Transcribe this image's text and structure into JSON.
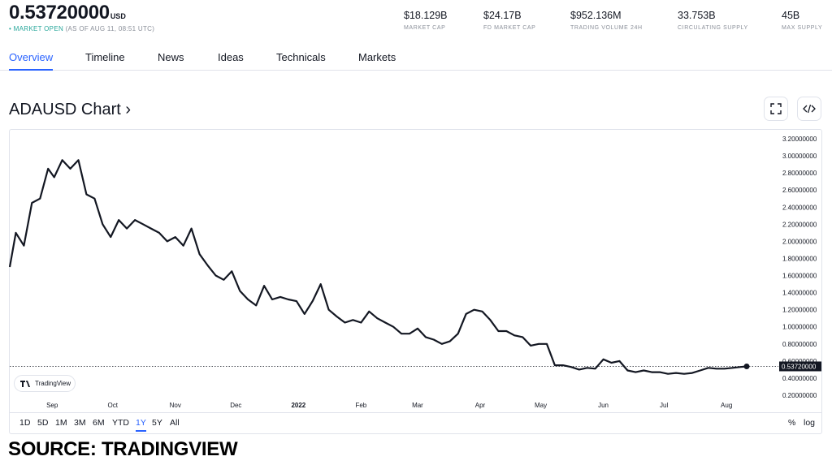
{
  "header": {
    "price": "0.53720000",
    "price_unit": "USD",
    "status_dot": "•",
    "status_open": "MARKET OPEN",
    "status_asof": "(AS OF AUG 11, 08:51 UTC)",
    "stats": [
      {
        "value": "$18.129B",
        "label": "MARKET CAP"
      },
      {
        "value": "$24.17B",
        "label": "FD MARKET CAP"
      },
      {
        "value": "$952.136M",
        "label": "TRADING VOLUME 24H"
      },
      {
        "value": "33.753B",
        "label": "CIRCULATING SUPPLY"
      },
      {
        "value": "45B",
        "label": "MAX SUPPLY"
      }
    ]
  },
  "tabs": [
    {
      "label": "Overview",
      "active": true
    },
    {
      "label": "Timeline"
    },
    {
      "label": "News"
    },
    {
      "label": "Ideas"
    },
    {
      "label": "Technicals"
    },
    {
      "label": "Markets"
    }
  ],
  "chart_title": "ADAUSD Chart ›",
  "icons": {
    "fullscreen": "fullscreen-icon",
    "embed": "embed-code-icon",
    "tradingview": "tradingview-logo"
  },
  "tradingview_label": "TradingView",
  "ranges": [
    {
      "label": "1D"
    },
    {
      "label": "5D"
    },
    {
      "label": "1M"
    },
    {
      "label": "3M"
    },
    {
      "label": "6M"
    },
    {
      "label": "YTD"
    },
    {
      "label": "1Y",
      "active": true
    },
    {
      "label": "5Y"
    },
    {
      "label": "All"
    }
  ],
  "scale_options": [
    "%",
    "log"
  ],
  "source_caption": "SOURCE: TRADINGVIEW",
  "colors": {
    "accent": "#2962ff",
    "line": "#131722",
    "market_open": "#26a69a"
  },
  "chart_data": {
    "type": "line",
    "title": "",
    "xlabel": "",
    "ylabel": "",
    "x_ticks": [
      "Sep",
      "Oct",
      "Nov",
      "Dec",
      "2022",
      "Feb",
      "Mar",
      "Apr",
      "May",
      "Jun",
      "Jul",
      "Aug"
    ],
    "y_ticks": [
      "3.20000000",
      "3.00000000",
      "2.80000000",
      "2.60000000",
      "2.40000000",
      "2.20000000",
      "2.00000000",
      "1.80000000",
      "1.60000000",
      "1.40000000",
      "1.20000000",
      "1.00000000",
      "0.80000000",
      "0.60000000",
      "0.40000000",
      "0.20000000"
    ],
    "ylim": [
      0.2,
      3.2
    ],
    "last_price_label": "0.53720000",
    "last_price": 0.5372,
    "grid": false,
    "series": [
      {
        "x": [
          "2021-08-11",
          "2021-08-14",
          "2021-08-18",
          "2021-08-22",
          "2021-08-26",
          "2021-08-30",
          "2021-09-02",
          "2021-09-06",
          "2021-09-10",
          "2021-09-14",
          "2021-09-18",
          "2021-09-22",
          "2021-09-26",
          "2021-09-30",
          "2021-10-04",
          "2021-10-08",
          "2021-10-12",
          "2021-10-16",
          "2021-10-20",
          "2021-10-24",
          "2021-10-28",
          "2021-11-01",
          "2021-11-05",
          "2021-11-09",
          "2021-11-13",
          "2021-11-17",
          "2021-11-21",
          "2021-11-25",
          "2021-11-29",
          "2021-12-03",
          "2021-12-07",
          "2021-12-11",
          "2021-12-15",
          "2021-12-19",
          "2021-12-23",
          "2021-12-27",
          "2021-12-31",
          "2022-01-04",
          "2022-01-08",
          "2022-01-12",
          "2022-01-16",
          "2022-01-20",
          "2022-01-24",
          "2022-01-28",
          "2022-02-01",
          "2022-02-05",
          "2022-02-09",
          "2022-02-13",
          "2022-02-17",
          "2022-02-21",
          "2022-02-25",
          "2022-03-01",
          "2022-03-05",
          "2022-03-09",
          "2022-03-13",
          "2022-03-17",
          "2022-03-21",
          "2022-03-25",
          "2022-03-29",
          "2022-04-02",
          "2022-04-06",
          "2022-04-10",
          "2022-04-14",
          "2022-04-18",
          "2022-04-22",
          "2022-04-26",
          "2022-04-30",
          "2022-05-04",
          "2022-05-08",
          "2022-05-12",
          "2022-05-16",
          "2022-05-20",
          "2022-05-24",
          "2022-05-28",
          "2022-06-01",
          "2022-06-05",
          "2022-06-09",
          "2022-06-13",
          "2022-06-17",
          "2022-06-21",
          "2022-06-25",
          "2022-06-29",
          "2022-07-03",
          "2022-07-07",
          "2022-07-11",
          "2022-07-15",
          "2022-07-19",
          "2022-07-23",
          "2022-07-27",
          "2022-07-31",
          "2022-08-04",
          "2022-08-08",
          "2022-08-11"
        ],
        "y": [
          1.7,
          2.1,
          1.95,
          2.45,
          2.5,
          2.85,
          2.75,
          2.95,
          2.85,
          2.95,
          2.55,
          2.5,
          2.2,
          2.05,
          2.25,
          2.15,
          2.25,
          2.2,
          2.15,
          2.1,
          2.0,
          2.05,
          1.95,
          2.15,
          1.85,
          1.72,
          1.6,
          1.55,
          1.65,
          1.42,
          1.32,
          1.25,
          1.48,
          1.32,
          1.35,
          1.32,
          1.3,
          1.15,
          1.3,
          1.5,
          1.2,
          1.12,
          1.05,
          1.08,
          1.05,
          1.18,
          1.1,
          1.05,
          1.0,
          0.92,
          0.92,
          0.98,
          0.88,
          0.85,
          0.8,
          0.83,
          0.92,
          1.15,
          1.2,
          1.18,
          1.08,
          0.95,
          0.95,
          0.9,
          0.88,
          0.78,
          0.8,
          0.8,
          0.55,
          0.55,
          0.53,
          0.5,
          0.52,
          0.51,
          0.62,
          0.58,
          0.6,
          0.49,
          0.47,
          0.49,
          0.47,
          0.47,
          0.45,
          0.46,
          0.45,
          0.46,
          0.49,
          0.52,
          0.51,
          0.51,
          0.52,
          0.53,
          0.5372
        ]
      }
    ]
  }
}
